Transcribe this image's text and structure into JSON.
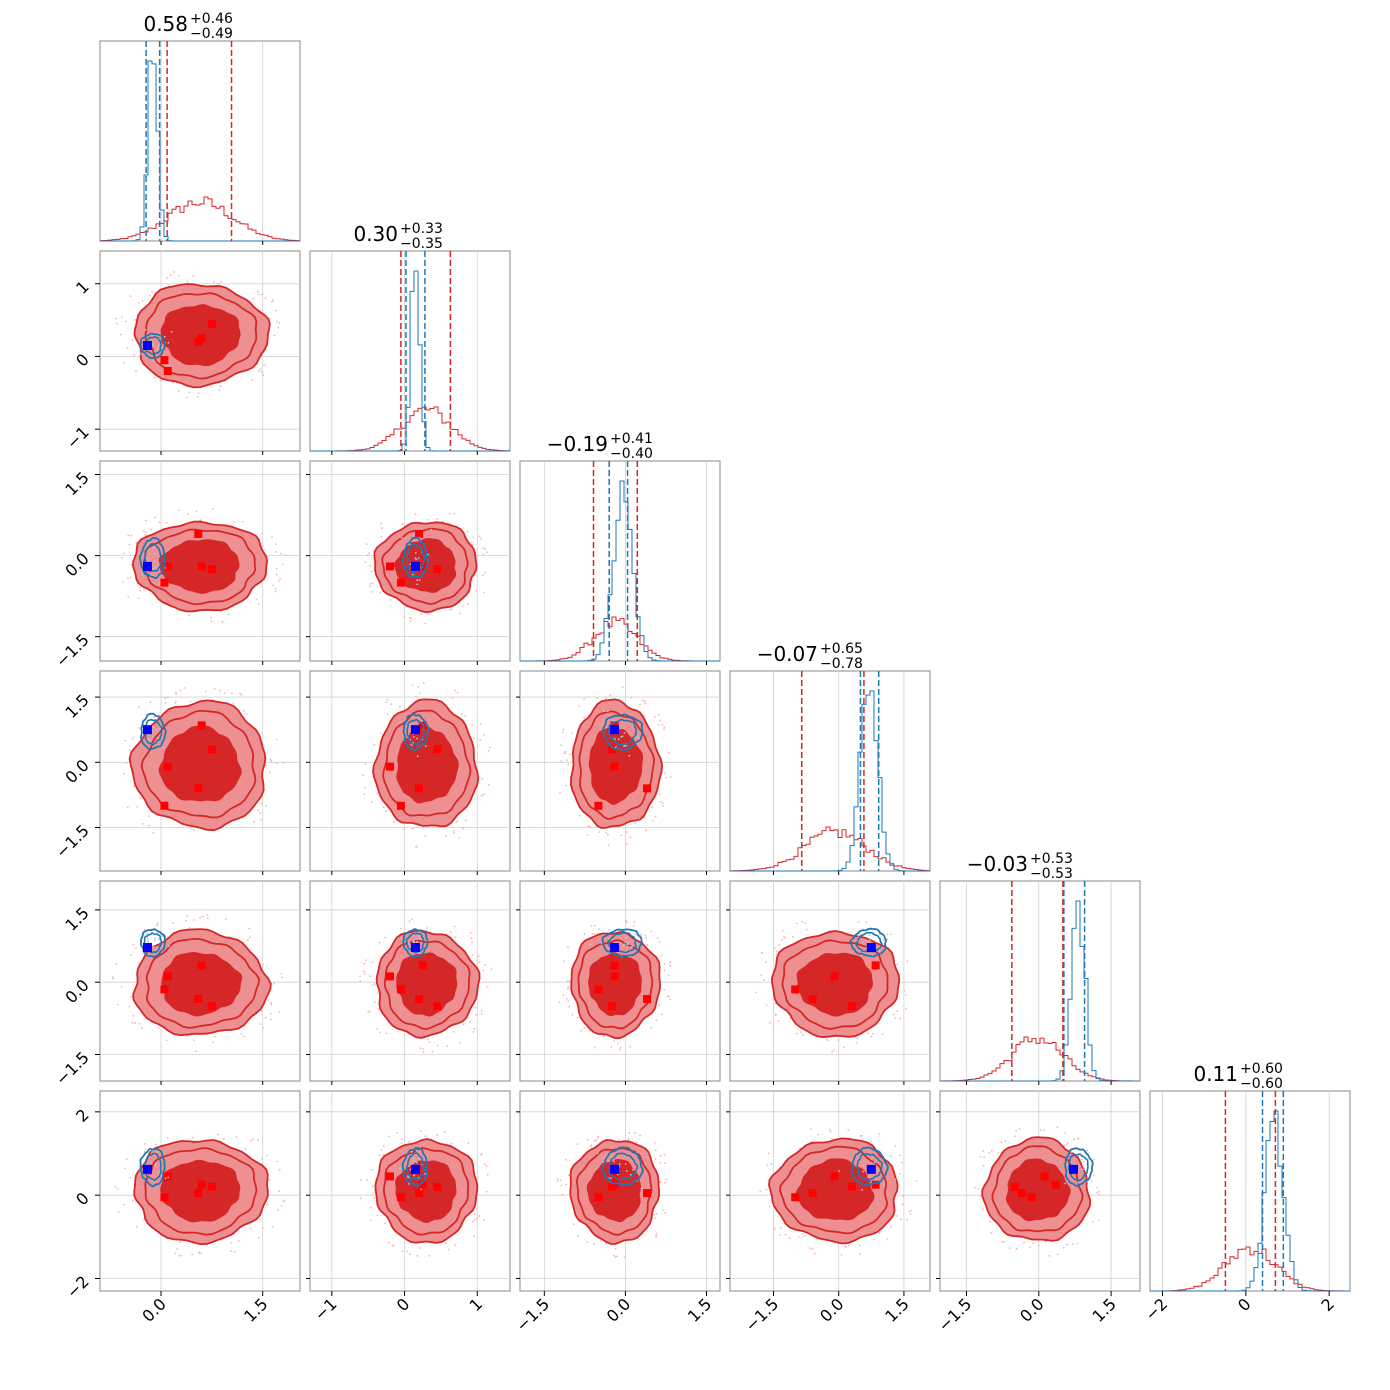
{
  "chart_data": {
    "type": "corner",
    "n_params": 6,
    "grid": true,
    "colors": {
      "primary": "#d62728",
      "primary_fill_dark": "#d62728",
      "primary_fill_light": "#ee9091",
      "secondary": "#1f77b4",
      "marker_primary": "#ff0000",
      "marker_truth": "#0000ff"
    },
    "axis_ranges": [
      [
        -0.9,
        2.05
      ],
      [
        -1.3,
        1.45
      ],
      [
        -1.95,
        1.75
      ],
      [
        -2.5,
        2.1
      ],
      [
        -2.05,
        2.1
      ],
      [
        -2.3,
        2.5
      ]
    ],
    "tick_values": [
      [
        0.0,
        1.5
      ],
      [
        -1,
        0,
        1
      ],
      [
        -1.5,
        0.0,
        1.5
      ],
      [
        -1.5,
        0.0,
        1.5
      ],
      [
        -1.5,
        0.0,
        1.5
      ],
      [
        -2,
        0,
        2
      ]
    ],
    "tick_labels": [
      [
        "0.0",
        "1.5"
      ],
      [
        "−1",
        "0",
        "1"
      ],
      [
        "−1.5",
        "0.0",
        "1.5"
      ],
      [
        "−1.5",
        "0.0",
        "1.5"
      ],
      [
        "−1.5",
        "0.0",
        "1.5"
      ],
      [
        "−2",
        "0",
        "2"
      ]
    ],
    "titles": [
      {
        "value": "0.58",
        "plus": "+0.46",
        "minus": "−0.49"
      },
      {
        "value": "0.30",
        "plus": "+0.33",
        "minus": "−0.35"
      },
      {
        "value": "−0.19",
        "plus": "+0.41",
        "minus": "−0.40"
      },
      {
        "value": "−0.07",
        "plus": "+0.65",
        "minus": "−0.78"
      },
      {
        "value": "−0.03",
        "plus": "+0.53",
        "minus": "−0.53"
      },
      {
        "value": "0.11",
        "plus": "+0.60",
        "minus": "−0.60"
      }
    ],
    "marginals": [
      {
        "primary": {
          "mean": 0.58,
          "sd": 0.48
        },
        "secondary": {
          "mean": -0.12,
          "sd": 0.07
        },
        "primary_quantiles": [
          0.09,
          1.04
        ],
        "secondary_quantiles": [
          -0.22,
          -0.02
        ]
      },
      {
        "primary": {
          "mean": 0.3,
          "sd": 0.34
        },
        "secondary": {
          "mean": 0.15,
          "sd": 0.06
        },
        "primary_quantiles": [
          -0.05,
          0.63
        ],
        "secondary_quantiles": [
          0.02,
          0.28
        ]
      },
      {
        "primary": {
          "mean": -0.19,
          "sd": 0.4
        },
        "secondary": {
          "mean": -0.05,
          "sd": 0.18
        },
        "primary_quantiles": [
          -0.59,
          0.22
        ],
        "secondary_quantiles": [
          -0.3,
          0.04
        ]
      },
      {
        "primary": {
          "mean": -0.07,
          "sd": 0.71
        },
        "secondary": {
          "mean": 0.7,
          "sd": 0.2
        },
        "primary_quantiles": [
          -0.85,
          0.58
        ],
        "secondary_quantiles": [
          0.5,
          0.92
        ]
      },
      {
        "primary": {
          "mean": -0.03,
          "sd": 0.53
        },
        "secondary": {
          "mean": 0.82,
          "sd": 0.14
        },
        "primary_quantiles": [
          -0.56,
          0.5
        ],
        "secondary_quantiles": [
          0.52,
          0.95
        ]
      },
      {
        "primary": {
          "mean": 0.11,
          "sd": 0.6
        },
        "secondary": {
          "mean": 0.68,
          "sd": 0.22
        },
        "primary_quantiles": [
          -0.49,
          0.71
        ],
        "secondary_quantiles": [
          0.4,
          0.9
        ]
      }
    ],
    "truth": [
      -0.2,
      0.15,
      -0.2,
      0.75,
      0.72,
      0.62
    ],
    "red_markers": [
      [
        0.75,
        0.45,
        -0.25,
        0.3,
        -0.5,
        0.2
      ],
      [
        0.6,
        0.25,
        -0.2,
        0.85,
        0.35,
        0.25
      ],
      [
        0.1,
        -0.2,
        -0.2,
        -0.1,
        0.12,
        0.45
      ],
      [
        0.55,
        0.2,
        0.4,
        -0.6,
        -0.35,
        0.05
      ],
      [
        0.05,
        -0.05,
        -0.5,
        -1.0,
        -0.15,
        -0.05
      ]
    ]
  }
}
